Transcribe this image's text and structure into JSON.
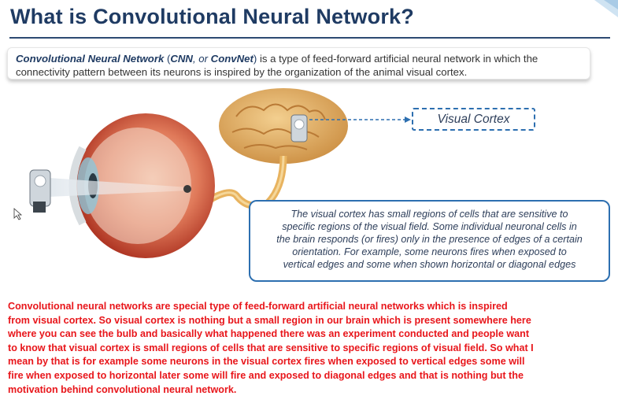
{
  "title": "What is Convolutional Neural Network?",
  "definition": {
    "term": "Convolutional Neural Network",
    "open_paren": " (",
    "abbr1": "CNN",
    "or_text": ", or ",
    "abbr2": "ConvNet",
    "close_paren": ")",
    "rest_line1": " is a type of feed-forward artificial neural network in which the",
    "line2": "connectivity pattern between its neurons is inspired by the organization of the animal visual cortex."
  },
  "figure": {
    "visual_cortex_label": "Visual Cortex",
    "description_lines": [
      "The visual cortex has small regions of cells that are sensitive to",
      "specific regions of the visual field. Some individual neuronal cells in",
      "the brain responds (or fires) only in the presence of edges of a certain",
      "orientation. For example, some neurons fires when exposed to",
      "vertical edges and some when shown horizontal or diagonal edges"
    ]
  },
  "caption_lines": [
    "Convolutional neural networks are special type of feed-forward artificial neural networks which is inspired",
    "from visual cortex. So visual cortex is nothing but a small region in our brain which is present somewhere here",
    "where you can see the bulb and basically what happened there was an experiment conducted and people want",
    "to know that visual cortex is small regions of cells that are sensitive to specific regions of visual field. So what I",
    "mean by that is for example some neurons in the visual cortex fires when exposed to vertical edges some will",
    "fire when exposed to horizontal later some will fire and exposed to diagonal edges and that is nothing but the",
    "motivation behind convolutional neural network."
  ],
  "colors": {
    "title": "#1f3b63",
    "accent_border": "#2d6fb0",
    "caption": "#e8161b",
    "brain": "#e0a85c",
    "eye": "#c9402e"
  }
}
